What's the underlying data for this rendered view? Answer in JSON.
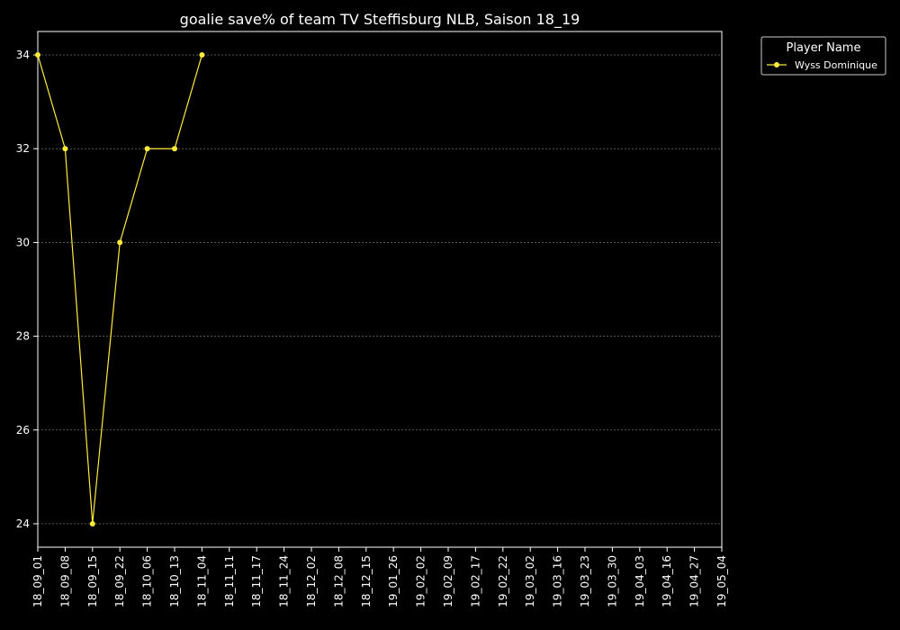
{
  "chart_data": {
    "type": "line",
    "title": "goalie save% of team TV Steffisburg NLB, Saison 18_19",
    "xlabel": "",
    "ylabel": "",
    "categories": [
      "18_09_01",
      "18_09_08",
      "18_09_15",
      "18_09_22",
      "18_10_06",
      "18_10_13",
      "18_11_04",
      "18_11_11",
      "18_11_17",
      "18_11_24",
      "18_12_02",
      "18_12_08",
      "18_12_15",
      "19_01_26",
      "19_02_02",
      "19_02_09",
      "19_02_17",
      "19_02_22",
      "19_03_02",
      "19_03_16",
      "19_03_23",
      "19_03_30",
      "19_04_03",
      "19_04_16",
      "19_04_27",
      "19_05_04"
    ],
    "series": [
      {
        "name": "Wyss Dominique",
        "color": "#ffeb3b",
        "values": [
          34,
          32,
          24,
          30,
          32,
          32,
          34,
          null,
          null,
          null,
          null,
          null,
          null,
          null,
          null,
          null,
          null,
          null,
          null,
          null,
          null,
          null,
          null,
          null,
          null,
          null
        ]
      }
    ],
    "ylim": [
      23.5,
      34.5
    ],
    "yticks": [
      24,
      26,
      28,
      30,
      32,
      34
    ],
    "grid": "horizontal",
    "legend": {
      "title": "Player Name",
      "placement": "outside-top-right"
    },
    "colors": {
      "background": "#000000",
      "foreground": "#ffffff",
      "grid": "#888888",
      "line": "#ffeb3b"
    }
  }
}
